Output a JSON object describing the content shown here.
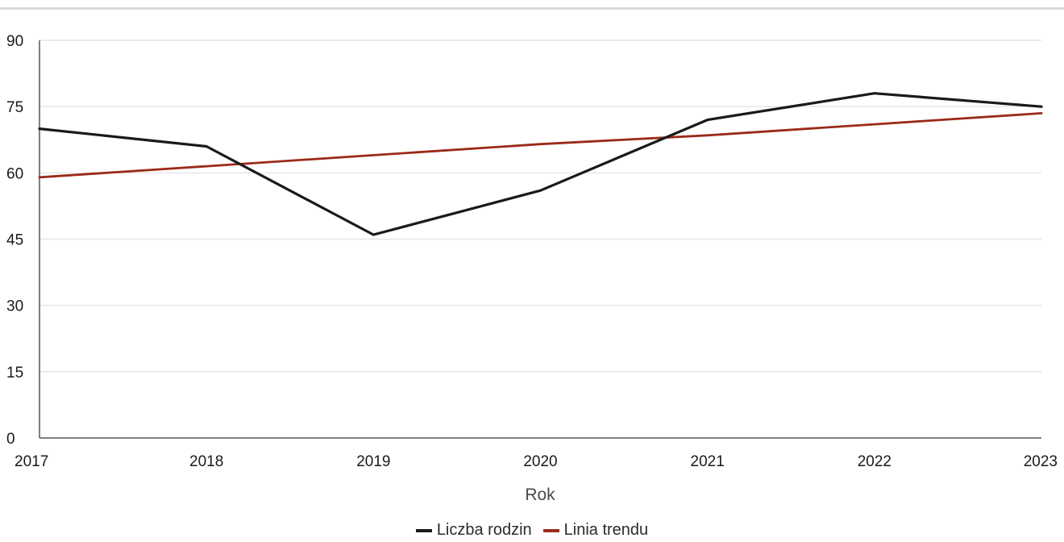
{
  "chart_data": {
    "type": "line",
    "title": "",
    "xlabel": "Rok",
    "ylabel": "",
    "x": [
      "2017",
      "2018",
      "2019",
      "2020",
      "2021",
      "2022",
      "2023"
    ],
    "ylim": [
      0,
      90
    ],
    "yticks": [
      "0",
      "15",
      "30",
      "45",
      "60",
      "75",
      "90"
    ],
    "grid": true,
    "legend_position": "bottom-center",
    "series": [
      {
        "name": "Liczba rodzin",
        "color": "#1a1a1a",
        "values": [
          70,
          66,
          46,
          56,
          72,
          78,
          75
        ]
      },
      {
        "name": "Linia trendu",
        "color": "#9b2a1a",
        "values": [
          59,
          61.5,
          64,
          66.5,
          68.5,
          71,
          73.5
        ]
      }
    ]
  }
}
